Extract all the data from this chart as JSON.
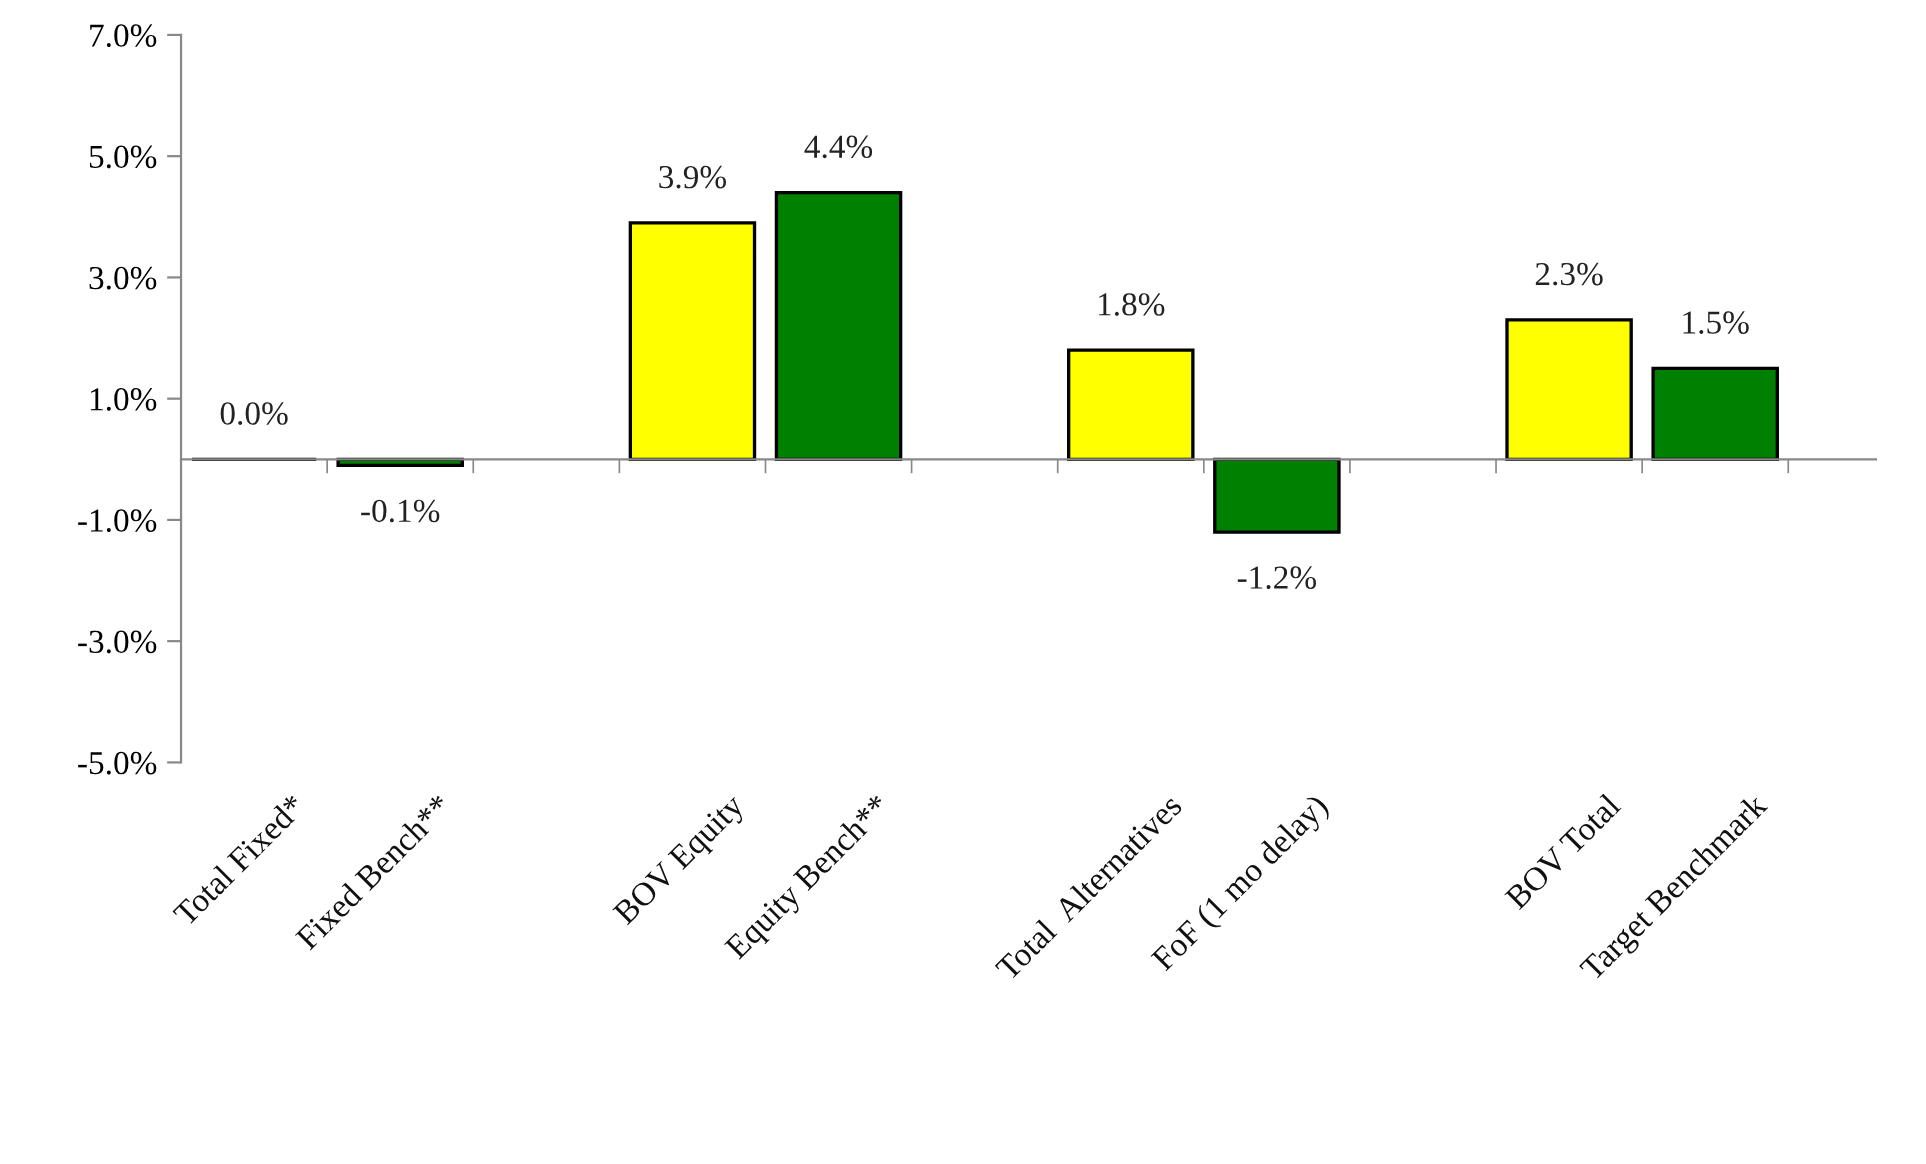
{
  "chart_data": {
    "type": "bar",
    "categories": [
      "Total Fixed*",
      "Fixed Bench**",
      null,
      "BOV Equity",
      "Equity Bench**",
      null,
      "Total  Alternatives",
      "FoF (1 mo delay)",
      null,
      "BOV Total",
      "Target Benchmark"
    ],
    "values": [
      0.0,
      -0.1,
      null,
      3.9,
      4.4,
      null,
      1.8,
      -1.2,
      null,
      2.3,
      1.5
    ],
    "colors": [
      "#000000",
      "#008000",
      null,
      "#ffff00",
      "#008000",
      null,
      "#ffff00",
      "#008000",
      null,
      "#ffff00",
      "#008000"
    ],
    "value_labels": [
      "0.0%",
      "-0.1%",
      null,
      "3.9%",
      "4.4%",
      null,
      "1.8%",
      "-1.2%",
      null,
      "2.3%",
      "1.5%"
    ],
    "ylim": [
      -5,
      7
    ],
    "yticks": [
      {
        "value": -5,
        "label": "-5.0%"
      },
      {
        "value": -3,
        "label": "-3.0%"
      },
      {
        "value": -1,
        "label": "-1.0%"
      },
      {
        "value": 1,
        "label": "1.0%"
      },
      {
        "value": 3,
        "label": "3.0%"
      },
      {
        "value": 5,
        "label": "5.0%"
      },
      {
        "value": 7,
        "label": "7.0%"
      }
    ],
    "grid": false,
    "legend": false
  }
}
